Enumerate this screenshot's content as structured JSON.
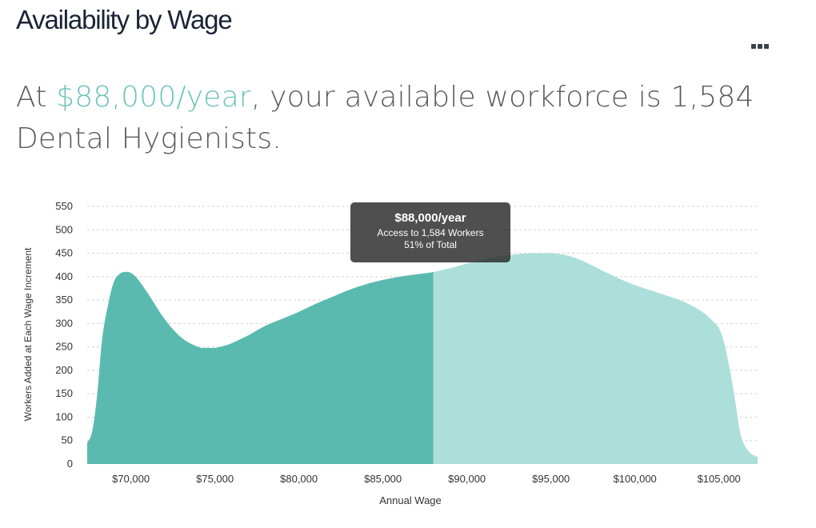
{
  "header": {
    "title": "Availability by Wage",
    "menu_icon": "more-horizontal-icon"
  },
  "headline": {
    "prefix": "At ",
    "wage": "$88,000/year",
    "middle": ", your available workforce is 1,584 Dental Hygienists."
  },
  "tooltip": {
    "title": "$88,000/year",
    "line1": "Access to 1,584 Workers",
    "line2": "51% of Total"
  },
  "colors": {
    "selected_fill": "#5bbab0",
    "unselected_fill": "#acdfd9",
    "accent_text": "#6cc3b9",
    "title_text": "#1b2436",
    "headline_text": "#5a5a5a",
    "grid": "#d4d4d4"
  },
  "chart_data": {
    "type": "area",
    "xlabel": "Annual Wage",
    "ylabel": "Workers Added at Each Wage Increment",
    "xlim": [
      67400,
      107300
    ],
    "ylim": [
      0,
      550
    ],
    "y_ticks": [
      "0",
      "50",
      "100",
      "150",
      "200",
      "250",
      "300",
      "350",
      "400",
      "450",
      "500",
      "550"
    ],
    "x_ticks": [
      {
        "value": 70000,
        "label": "$70,000"
      },
      {
        "value": 75000,
        "label": "$75,000"
      },
      {
        "value": 80000,
        "label": "$80,000"
      },
      {
        "value": 85000,
        "label": "$85,000"
      },
      {
        "value": 90000,
        "label": "$90,000"
      },
      {
        "value": 95000,
        "label": "$95,000"
      },
      {
        "value": 100000,
        "label": "$100,000"
      },
      {
        "value": 105000,
        "label": "$105,000"
      }
    ],
    "grid": true,
    "selected_wage": 88000,
    "series": [
      {
        "x": [
          67400,
          67700,
          68000,
          68300,
          68700,
          69000,
          69300,
          69600,
          70000,
          70400,
          71000,
          72000,
          73000,
          74000,
          74500,
          75000,
          75500,
          76000,
          77000,
          78000,
          79000,
          80000,
          81000,
          82000,
          83000,
          84000,
          85000,
          86000,
          87000,
          88000,
          89000,
          90000,
          91000,
          92000,
          93000,
          94000,
          95000,
          96000,
          97000,
          98000,
          99000,
          100000,
          101000,
          102000,
          103000,
          104000,
          104500,
          105000,
          105300,
          105600,
          105900,
          106200,
          106400,
          106700,
          107000,
          107300
        ],
        "y": [
          45,
          70,
          150,
          270,
          350,
          390,
          405,
          410,
          408,
          395,
          365,
          310,
          270,
          250,
          248,
          248,
          252,
          258,
          275,
          295,
          310,
          325,
          342,
          357,
          372,
          384,
          393,
          400,
          405,
          410,
          418,
          428,
          437,
          444,
          448,
          450,
          450,
          445,
          432,
          414,
          397,
          382,
          370,
          358,
          345,
          325,
          310,
          290,
          260,
          210,
          150,
          80,
          50,
          30,
          20,
          15
        ]
      }
    ]
  }
}
